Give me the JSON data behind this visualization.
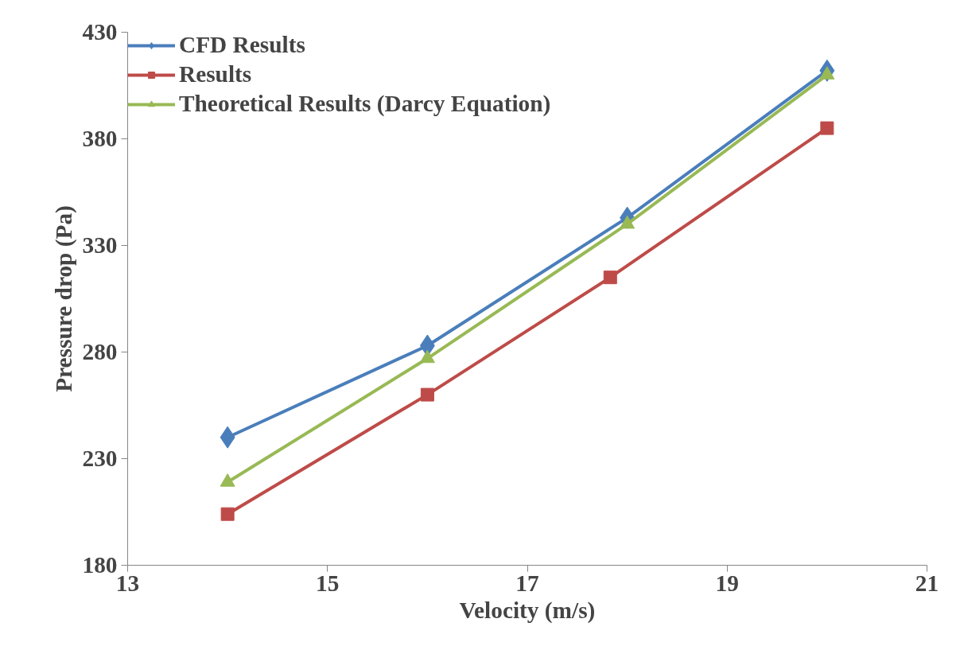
{
  "chart_data": {
    "type": "line",
    "xlabel": "Velocity (m/s)",
    "ylabel": "Pressure drop (Pa)",
    "xlim": [
      13,
      21
    ],
    "xticks": [
      13,
      15,
      17,
      19,
      21
    ],
    "ylim": [
      180,
      430
    ],
    "yticks": [
      180,
      230,
      280,
      330,
      380,
      430
    ],
    "grid": false,
    "legend": "top left",
    "line_style": "solid",
    "series": [
      {
        "name": "CFD Results",
        "color": "#4a7ebb",
        "marker": "diamond",
        "x": [
          14,
          16,
          18,
          20
        ],
        "values": [
          240,
          283,
          343,
          412
        ]
      },
      {
        "name": "Results",
        "color": "#be4b48",
        "marker": "square",
        "x": [
          14,
          16,
          17.83,
          20
        ],
        "values": [
          204,
          260,
          315,
          385
        ]
      },
      {
        "name": "Theoretical Results (Darcy Equation)",
        "color": "#98b954",
        "marker": "triangle",
        "x": [
          14,
          16,
          18,
          20
        ],
        "values": [
          219,
          277,
          340,
          410
        ]
      }
    ]
  }
}
